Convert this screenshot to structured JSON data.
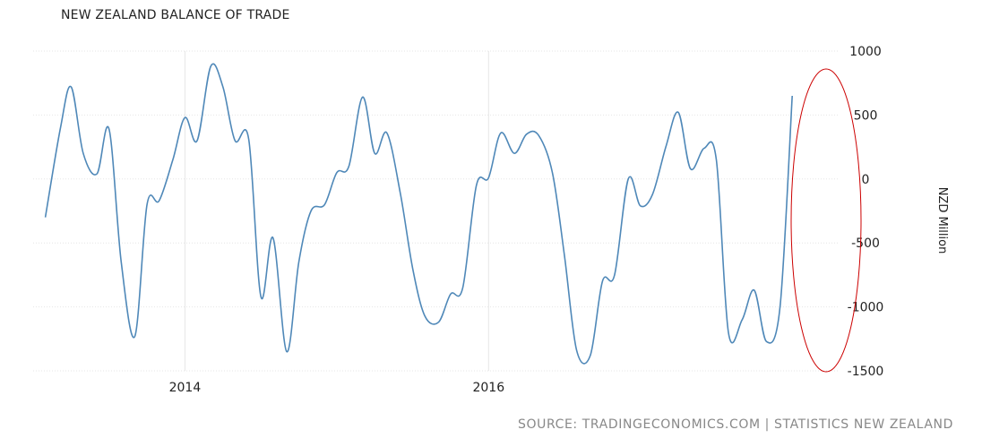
{
  "chart_data": {
    "type": "line",
    "title": "NEW ZEALAND BALANCE OF TRADE",
    "ylabel": "NZD Million",
    "xlabel": "",
    "ylim": [
      -1500,
      1000
    ],
    "y_ticks": [
      1000,
      500,
      0,
      -500,
      -1000,
      -1500
    ],
    "x_ticks": [
      {
        "label": "2014",
        "t": 2014.0
      },
      {
        "label": "2016",
        "t": 2016.0
      }
    ],
    "xlim": [
      2013.0,
      2018.3
    ],
    "grid": true,
    "series": [
      {
        "color": "#4f88b8",
        "points": [
          [
            2013.08,
            -300
          ],
          [
            2013.18,
            400
          ],
          [
            2013.25,
            720
          ],
          [
            2013.33,
            200
          ],
          [
            2013.42,
            40
          ],
          [
            2013.5,
            390
          ],
          [
            2013.58,
            -650
          ],
          [
            2013.67,
            -1230
          ],
          [
            2013.75,
            -200
          ],
          [
            2013.83,
            -170
          ],
          [
            2013.92,
            150
          ],
          [
            2014.0,
            480
          ],
          [
            2014.08,
            300
          ],
          [
            2014.17,
            880
          ],
          [
            2014.25,
            720
          ],
          [
            2014.33,
            300
          ],
          [
            2014.42,
            310
          ],
          [
            2014.5,
            -920
          ],
          [
            2014.58,
            -460
          ],
          [
            2014.67,
            -1350
          ],
          [
            2014.75,
            -650
          ],
          [
            2014.83,
            -250
          ],
          [
            2014.92,
            -200
          ],
          [
            2015.0,
            50
          ],
          [
            2015.08,
            100
          ],
          [
            2015.17,
            640
          ],
          [
            2015.25,
            200
          ],
          [
            2015.33,
            360
          ],
          [
            2015.42,
            -120
          ],
          [
            2015.5,
            -700
          ],
          [
            2015.58,
            -1070
          ],
          [
            2015.67,
            -1120
          ],
          [
            2015.75,
            -900
          ],
          [
            2015.83,
            -850
          ],
          [
            2015.92,
            -50
          ],
          [
            2016.0,
            10
          ],
          [
            2016.08,
            360
          ],
          [
            2016.17,
            200
          ],
          [
            2016.25,
            350
          ],
          [
            2016.33,
            340
          ],
          [
            2016.42,
            50
          ],
          [
            2016.5,
            -600
          ],
          [
            2016.58,
            -1340
          ],
          [
            2016.67,
            -1380
          ],
          [
            2016.75,
            -800
          ],
          [
            2016.83,
            -750
          ],
          [
            2016.92,
            0
          ],
          [
            2017.0,
            -210
          ],
          [
            2017.08,
            -120
          ],
          [
            2017.17,
            260
          ],
          [
            2017.25,
            520
          ],
          [
            2017.33,
            80
          ],
          [
            2017.42,
            240
          ],
          [
            2017.5,
            150
          ],
          [
            2017.58,
            -1200
          ],
          [
            2017.67,
            -1100
          ],
          [
            2017.75,
            -870
          ],
          [
            2017.83,
            -1270
          ],
          [
            2017.92,
            -1000
          ],
          [
            2018.0,
            650
          ]
        ]
      }
    ]
  },
  "source": "SOURCE: TRADINGECONOMICS.COM | STATISTICS NEW ZEALAND",
  "annotation": {
    "type": "ellipse",
    "color": "#cc0000"
  }
}
